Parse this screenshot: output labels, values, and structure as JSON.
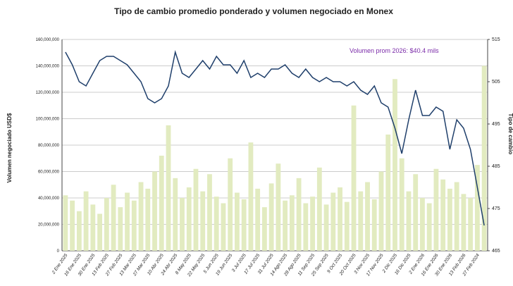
{
  "chart_data": {
    "type": "bar-line",
    "title": "Tipo de cambio promedio ponderado y volumen negociado en Monex",
    "y_label": "Volumen negociado USD$",
    "y2_label": "Tipo de cambio",
    "annotation": "Volumen prom 2026: $40.4 mils",
    "categories": [
      "2 Ene 2025",
      null,
      "16 Ene 2025",
      null,
      "30 Ene 2025",
      null,
      "13 Feb 2025",
      null,
      "27 Feb 2025",
      null,
      "13 Mar 2025",
      null,
      "27 Mar 2025",
      null,
      "10 Abr 2025",
      null,
      "24 Abr 2025",
      null,
      "8 May 2025",
      null,
      "22 May 2025",
      null,
      "5 Jun 2025",
      null,
      "19 Jun 2025",
      null,
      "3 Jul 2025",
      null,
      "17 Jul 2025",
      null,
      "31 Jul 2025",
      null,
      "14 Ago 2025",
      null,
      "28 Ago 2025",
      null,
      "11 Sep 2025",
      null,
      "25 Sep 2025",
      null,
      "9 Oct 2025",
      null,
      "20 Oct 2025",
      null,
      "3 Nov 2025",
      null,
      "17 Nov 2025",
      null,
      "2 Dic 2025",
      null,
      "16 Dic 2025",
      null,
      "2 Ene 2026",
      null,
      "16 Ene 2026",
      null,
      "30 Ene 2026",
      null,
      "13 Feb 2026",
      null,
      "27 Feb 2024",
      null
    ],
    "series": [
      {
        "name": "Volumen",
        "color": "#e2ebc0",
        "values": [
          42000000,
          38000000,
          30000000,
          45000000,
          35000000,
          28000000,
          40000000,
          50000000,
          33000000,
          44000000,
          38000000,
          52000000,
          47000000,
          60000000,
          72000000,
          95000000,
          55000000,
          40000000,
          48000000,
          62000000,
          45000000,
          58000000,
          41000000,
          36000000,
          70000000,
          44000000,
          39000000,
          82000000,
          47000000,
          33000000,
          51000000,
          66000000,
          38000000,
          42000000,
          55000000,
          36000000,
          41000000,
          63000000,
          35000000,
          44000000,
          48000000,
          37000000,
          110000000,
          45000000,
          52000000,
          39000000,
          60000000,
          88000000,
          130000000,
          70000000,
          45000000,
          58000000,
          40000000,
          36000000,
          62000000,
          54000000,
          47000000,
          52000000,
          43000000,
          40000000,
          65000000,
          140000000
        ]
      },
      {
        "name": "Tipo de cambio",
        "color": "#1f3f6b",
        "axis": "y2",
        "values": [
          512,
          509,
          505,
          504,
          507,
          510,
          511,
          511,
          510,
          509,
          507,
          505,
          501,
          500,
          501,
          504,
          512,
          507,
          506,
          508,
          510,
          508,
          511,
          509,
          509,
          507,
          510,
          506,
          507,
          506,
          508,
          508,
          509,
          507,
          506,
          508,
          506,
          505,
          506,
          505,
          505,
          504,
          505,
          503,
          502,
          504,
          500,
          499,
          494,
          488,
          496,
          503,
          497,
          497,
          499,
          498,
          489,
          496,
          494,
          489,
          480,
          471
        ]
      }
    ],
    "ylim": [
      0,
      160000000
    ],
    "yticks": [
      0,
      {
        "value": 20000000,
        "label": "20,000,000"
      },
      {
        "value": 40000000,
        "label": "40,000,000"
      },
      {
        "value": 60000000,
        "label": "60,000,000"
      },
      {
        "value": 80000000,
        "label": "80,000,000"
      },
      {
        "value": 100000000,
        "label": "100,000,000"
      },
      {
        "value": 120000000,
        "label": "120,000,000"
      },
      {
        "value": 140000000,
        "label": "140,000,000"
      },
      {
        "value": 160000000,
        "label": "160,000,000"
      }
    ],
    "y2lim": [
      465,
      515
    ],
    "y2ticks": [
      465,
      475,
      485,
      495,
      505,
      515
    ],
    "grid": true
  }
}
